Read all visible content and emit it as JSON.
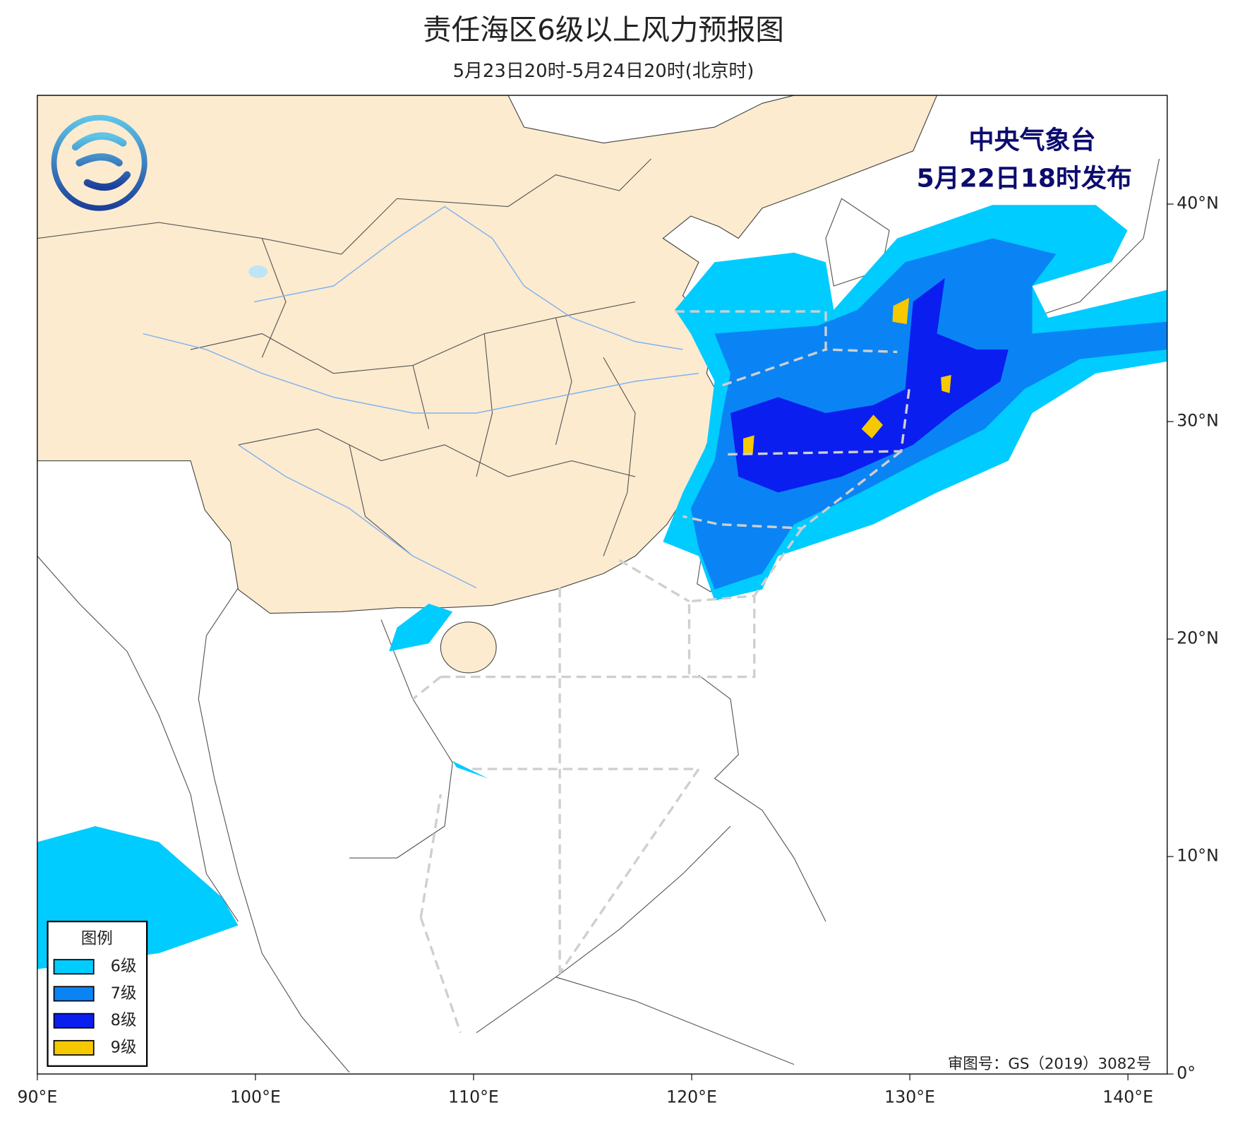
{
  "header": {
    "title": "责任海区6级以上风力预报图",
    "subtitle": "5月23日20时-5月24日20时(北京时)"
  },
  "issuer": {
    "name": "中央气象台",
    "time": "5月22日18时发布"
  },
  "map": {
    "xlim": [
      90,
      141.8
    ],
    "ylim": [
      0,
      45
    ],
    "xticks": [
      {
        "value": 90,
        "label": "90°E"
      },
      {
        "value": 100,
        "label": "100°E"
      },
      {
        "value": 110,
        "label": "110°E"
      },
      {
        "value": 120,
        "label": "120°E"
      },
      {
        "value": 130,
        "label": "130°E"
      },
      {
        "value": 140,
        "label": "140°E"
      }
    ],
    "yticks": [
      {
        "value": 0,
        "label": "0°"
      },
      {
        "value": 10,
        "label": "10°N"
      },
      {
        "value": 20,
        "label": "20°N"
      },
      {
        "value": 30,
        "label": "30°N"
      },
      {
        "value": 40,
        "label": "40°N"
      }
    ]
  },
  "legend": {
    "title": "图例",
    "items": [
      {
        "label": "6级",
        "color": "#00ccff"
      },
      {
        "label": "7级",
        "color": "#0a84f5"
      },
      {
        "label": "8级",
        "color": "#0a1ef0"
      },
      {
        "label": "9级",
        "color": "#f5c800"
      }
    ]
  },
  "approval": "审图号：GS（2019）3082号"
}
